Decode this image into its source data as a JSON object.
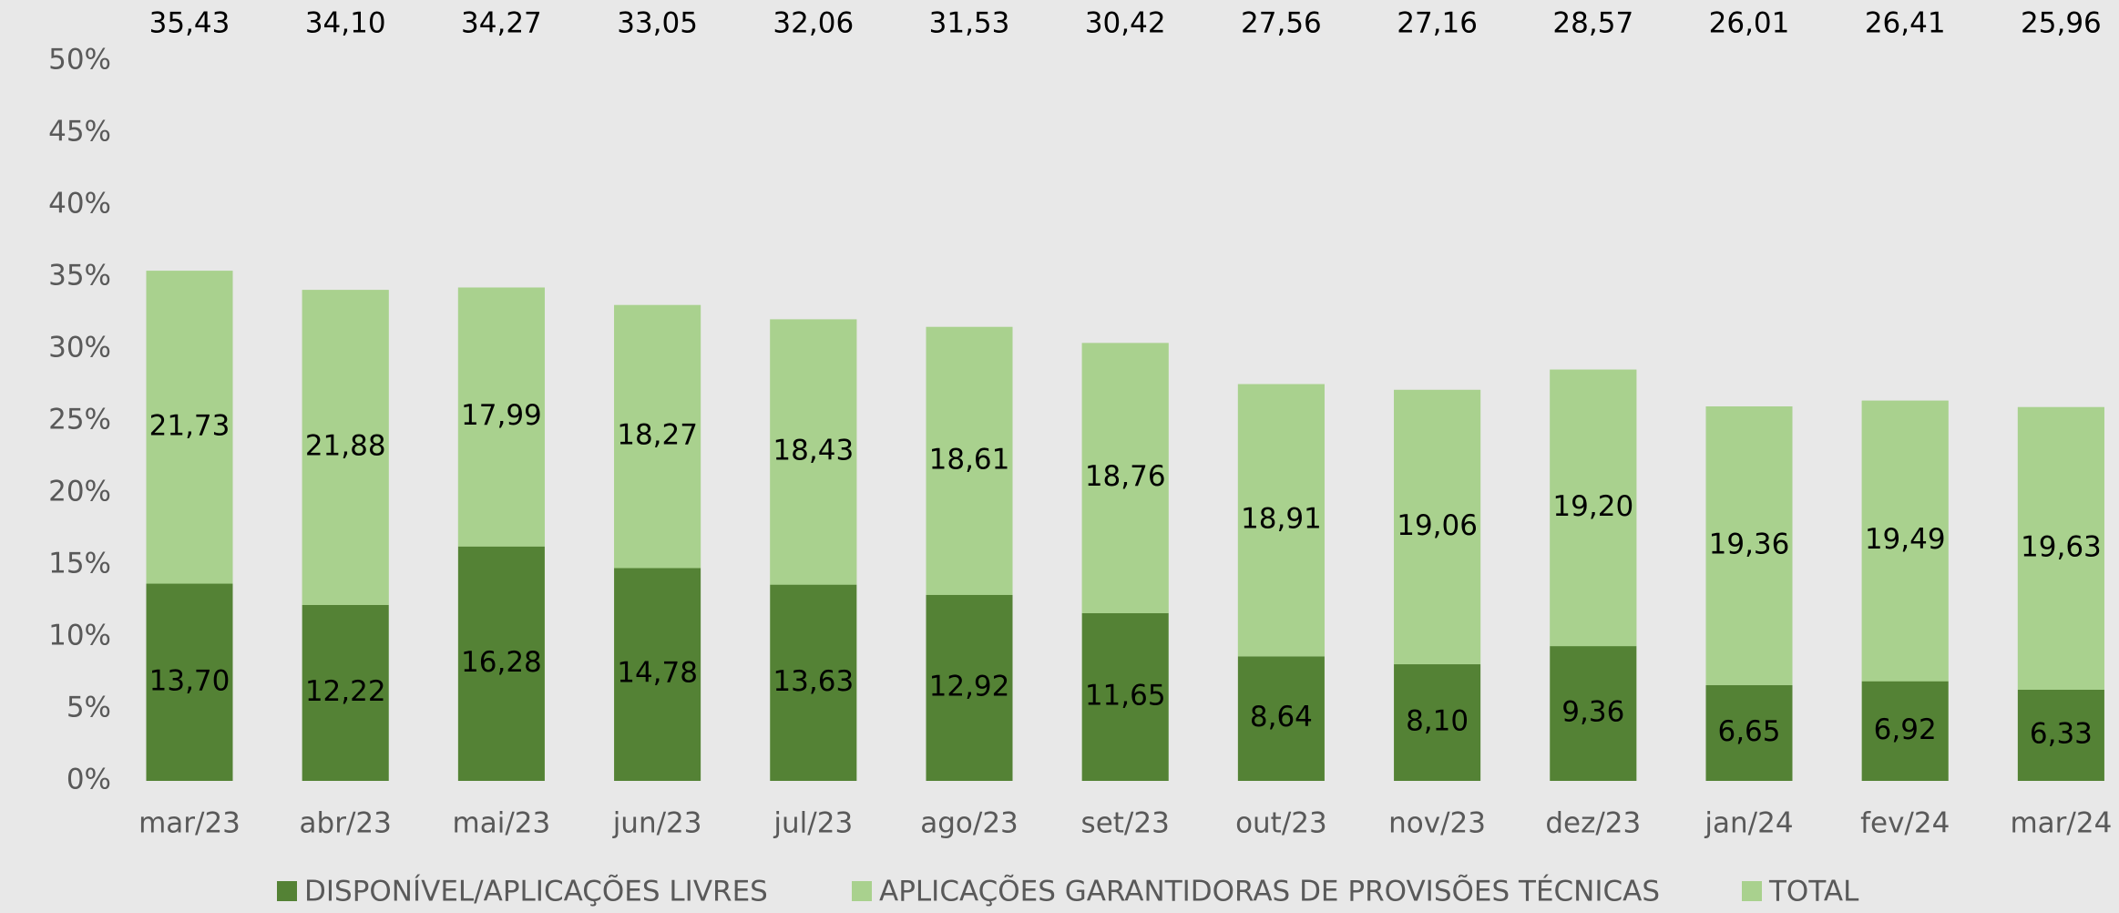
{
  "chart_data": {
    "type": "stacked_bar",
    "categories": [
      "mar/23",
      "abr/23",
      "mai/23",
      "jun/23",
      "jul/23",
      "ago/23",
      "set/23",
      "out/23",
      "nov/23",
      "dez/23",
      "jan/24",
      "fev/24",
      "mar/24"
    ],
    "series": [
      {
        "name": "DISPONÍVEL/APLICAÇÕES LIVRES",
        "color": "#548235",
        "values": [
          13.7,
          12.22,
          16.28,
          14.78,
          13.63,
          12.92,
          11.65,
          8.64,
          8.1,
          9.36,
          6.65,
          6.92,
          6.33
        ],
        "value_labels": [
          "13,70",
          "12,22",
          "16,28",
          "14,78",
          "13,63",
          "12,92",
          "11,65",
          "8,64",
          "8,10",
          "9,36",
          "6,65",
          "6,92",
          "6,33"
        ]
      },
      {
        "name": "APLICAÇÕES GARANTIDORAS DE PROVISÕES TÉCNICAS",
        "color": "#a9d18e",
        "values": [
          21.73,
          21.88,
          17.99,
          18.27,
          18.43,
          18.61,
          18.76,
          18.91,
          19.06,
          19.2,
          19.36,
          19.49,
          19.63
        ],
        "value_labels": [
          "21,73",
          "21,88",
          "17,99",
          "18,27",
          "18,43",
          "18,61",
          "18,76",
          "18,91",
          "19,06",
          "19,20",
          "19,36",
          "19,49",
          "19,63"
        ]
      },
      {
        "name": "TOTAL",
        "color": "#a9d18e",
        "stack": false,
        "values": [
          35.43,
          34.1,
          34.27,
          33.05,
          32.06,
          31.53,
          30.42,
          27.56,
          27.16,
          28.57,
          26.01,
          26.41,
          25.96
        ],
        "value_labels": [
          "35,43",
          "34,10",
          "34,27",
          "33,05",
          "32,06",
          "31,53",
          "30,42",
          "27,56",
          "27,16",
          "28,57",
          "26,01",
          "26,41",
          "25,96"
        ]
      }
    ],
    "ylim": [
      0,
      50
    ],
    "yticks": [
      {
        "value": 0,
        "label": "0%"
      },
      {
        "value": 5,
        "label": "5%"
      },
      {
        "value": 10,
        "label": "10%"
      },
      {
        "value": 15,
        "label": "15%"
      },
      {
        "value": 20,
        "label": "20%"
      },
      {
        "value": 25,
        "label": "25%"
      },
      {
        "value": 30,
        "label": "30%"
      },
      {
        "value": 35,
        "label": "35%"
      },
      {
        "value": 40,
        "label": "40%"
      },
      {
        "value": 45,
        "label": "45%"
      },
      {
        "value": 50,
        "label": "50%"
      }
    ],
    "grid": false,
    "legend": "bottom"
  }
}
